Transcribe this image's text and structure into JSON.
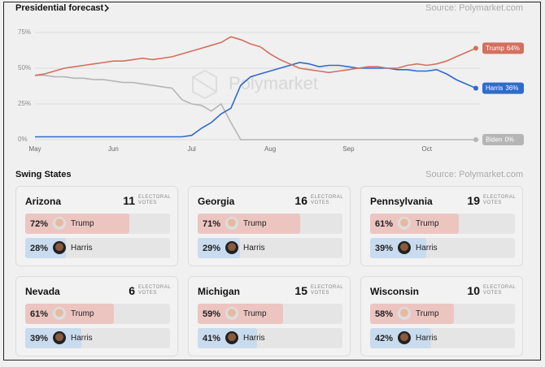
{
  "chart_data": {
    "type": "line",
    "title": "Presidential forecast",
    "source": "Source: Polymarket.com",
    "watermark": "Polymarket",
    "categories": [
      "May",
      null,
      null,
      null,
      null,
      null,
      null,
      null,
      "Jun",
      null,
      null,
      null,
      null,
      null,
      null,
      null,
      "Jul",
      null,
      null,
      null,
      null,
      null,
      null,
      null,
      "Aug",
      null,
      null,
      null,
      null,
      null,
      null,
      null,
      "Sep",
      null,
      null,
      null,
      null,
      null,
      null,
      null,
      "Oct",
      null,
      null,
      null,
      null,
      null
    ],
    "series": [
      {
        "name": "Trump",
        "color": "#d4705e",
        "end_label": "64%",
        "values": [
          45,
          46,
          48,
          50,
          51,
          52,
          53,
          54,
          55,
          55,
          56,
          57,
          56,
          57,
          58,
          60,
          62,
          64,
          66,
          68,
          72,
          70,
          67,
          65,
          60,
          56,
          53,
          50,
          49,
          48,
          47,
          48,
          49,
          50,
          51,
          51,
          50,
          50,
          52,
          53,
          52,
          53,
          55,
          58,
          61,
          64
        ]
      },
      {
        "name": "Harris",
        "color": "#2f6bc9",
        "end_label": "36%",
        "values": [
          2,
          2,
          2,
          2,
          2,
          2,
          2,
          2,
          2,
          2,
          2,
          2,
          2,
          2,
          2,
          2,
          3,
          8,
          12,
          18,
          22,
          38,
          44,
          46,
          48,
          50,
          52,
          54,
          53,
          51,
          52,
          52,
          51,
          50,
          50,
          50,
          50,
          49,
          49,
          48,
          48,
          49,
          46,
          42,
          39,
          36
        ]
      },
      {
        "name": "Biden",
        "color": "#b5b5b5",
        "end_label": "0%",
        "values": [
          45,
          45,
          44,
          44,
          43,
          43,
          42,
          42,
          41,
          40,
          40,
          39,
          38,
          37,
          36,
          28,
          25,
          24,
          20,
          25,
          12,
          0,
          0,
          0,
          0,
          0,
          0,
          0,
          0,
          0,
          0,
          0,
          0,
          0,
          0,
          0,
          0,
          0,
          0,
          0,
          0,
          0,
          0,
          0,
          0,
          0
        ]
      }
    ],
    "ylim": [
      0,
      75
    ],
    "yticks": [
      {
        "value": 0,
        "label": "0%"
      },
      {
        "value": 25,
        "label": "25%"
      },
      {
        "value": 50,
        "label": "50%"
      },
      {
        "value": 75,
        "label": "75%"
      }
    ],
    "grid": true
  },
  "swing_states": {
    "title": "Swing States",
    "source": "Source: Polymarket.com",
    "ev_label": "ELECTORAL VOTES",
    "colors": [
      "#ecc5c1",
      "#c9dbee"
    ],
    "states": [
      {
        "name": "Arizona",
        "electoral_votes": 11,
        "candidates": [
          "Trump",
          "Harris"
        ],
        "values": [
          72,
          28
        ],
        "value_labels": [
          "72%",
          "28%"
        ]
      },
      {
        "name": "Georgia",
        "electoral_votes": 16,
        "candidates": [
          "Trump",
          "Harris"
        ],
        "values": [
          71,
          29
        ],
        "value_labels": [
          "71%",
          "29%"
        ]
      },
      {
        "name": "Pennsylvania",
        "electoral_votes": 19,
        "candidates": [
          "Trump",
          "Harris"
        ],
        "values": [
          61,
          39
        ],
        "value_labels": [
          "61%",
          "39%"
        ]
      },
      {
        "name": "Nevada",
        "electoral_votes": 6,
        "candidates": [
          "Trump",
          "Harris"
        ],
        "values": [
          61,
          39
        ],
        "value_labels": [
          "61%",
          "39%"
        ]
      },
      {
        "name": "Michigan",
        "electoral_votes": 15,
        "candidates": [
          "Trump",
          "Harris"
        ],
        "values": [
          59,
          41
        ],
        "value_labels": [
          "59%",
          "41%"
        ]
      },
      {
        "name": "Wisconsin",
        "electoral_votes": 10,
        "candidates": [
          "Trump",
          "Harris"
        ],
        "values": [
          58,
          42
        ],
        "value_labels": [
          "58%",
          "42%"
        ]
      }
    ]
  }
}
